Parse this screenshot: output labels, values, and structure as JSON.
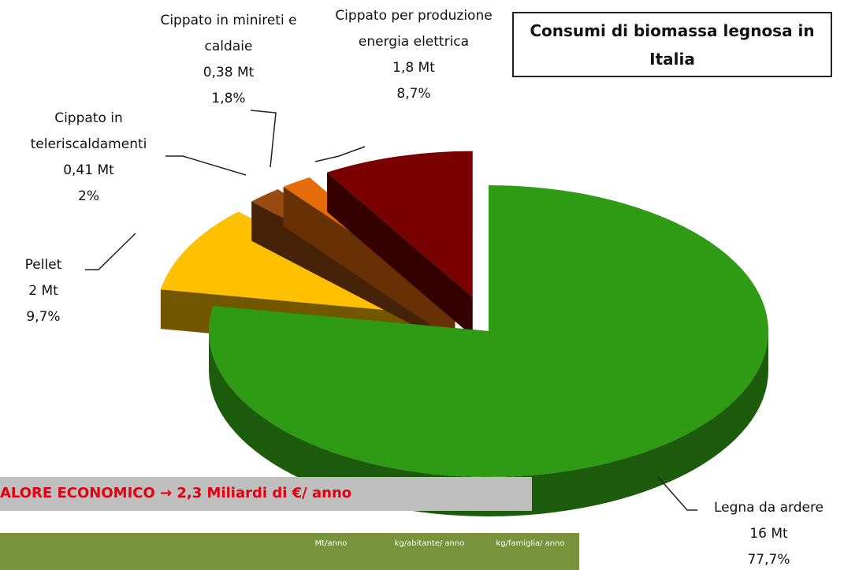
{
  "chart_data": {
    "type": "pie",
    "title": "Consumi di biomassa legnosa in Italia",
    "categories": [
      "Legna da ardere",
      "Pellet",
      "Cippato in teleriscaldamenti",
      "Cippato in minireti e caldaie",
      "Cippato per produzione energia elettrica"
    ],
    "values": [
      77.7,
      9.7,
      2,
      1.8,
      8.7
    ],
    "value_labels": [
      "77,7%",
      "9,7%",
      "2%",
      "1,8%",
      "8,7%"
    ],
    "tonnage": {
      "values": [
        16,
        2,
        0.41,
        0.38,
        1.8
      ],
      "value_labels": [
        "16 Mt",
        "2 Mt",
        "0,41 Mt",
        "0,38 Mt",
        "1,8 Mt"
      ]
    },
    "colors": [
      "#2f9a14",
      "#ffc000",
      "#9a4b12",
      "#e46c0a",
      "#7a0000"
    ],
    "annotation": "ALORE ECONOMICO → 2,3 Miliardi di €/ anno",
    "table_header": [
      "Mt/anno",
      "kg/abitante/ anno",
      "kg/famiglia/ anno"
    ]
  }
}
